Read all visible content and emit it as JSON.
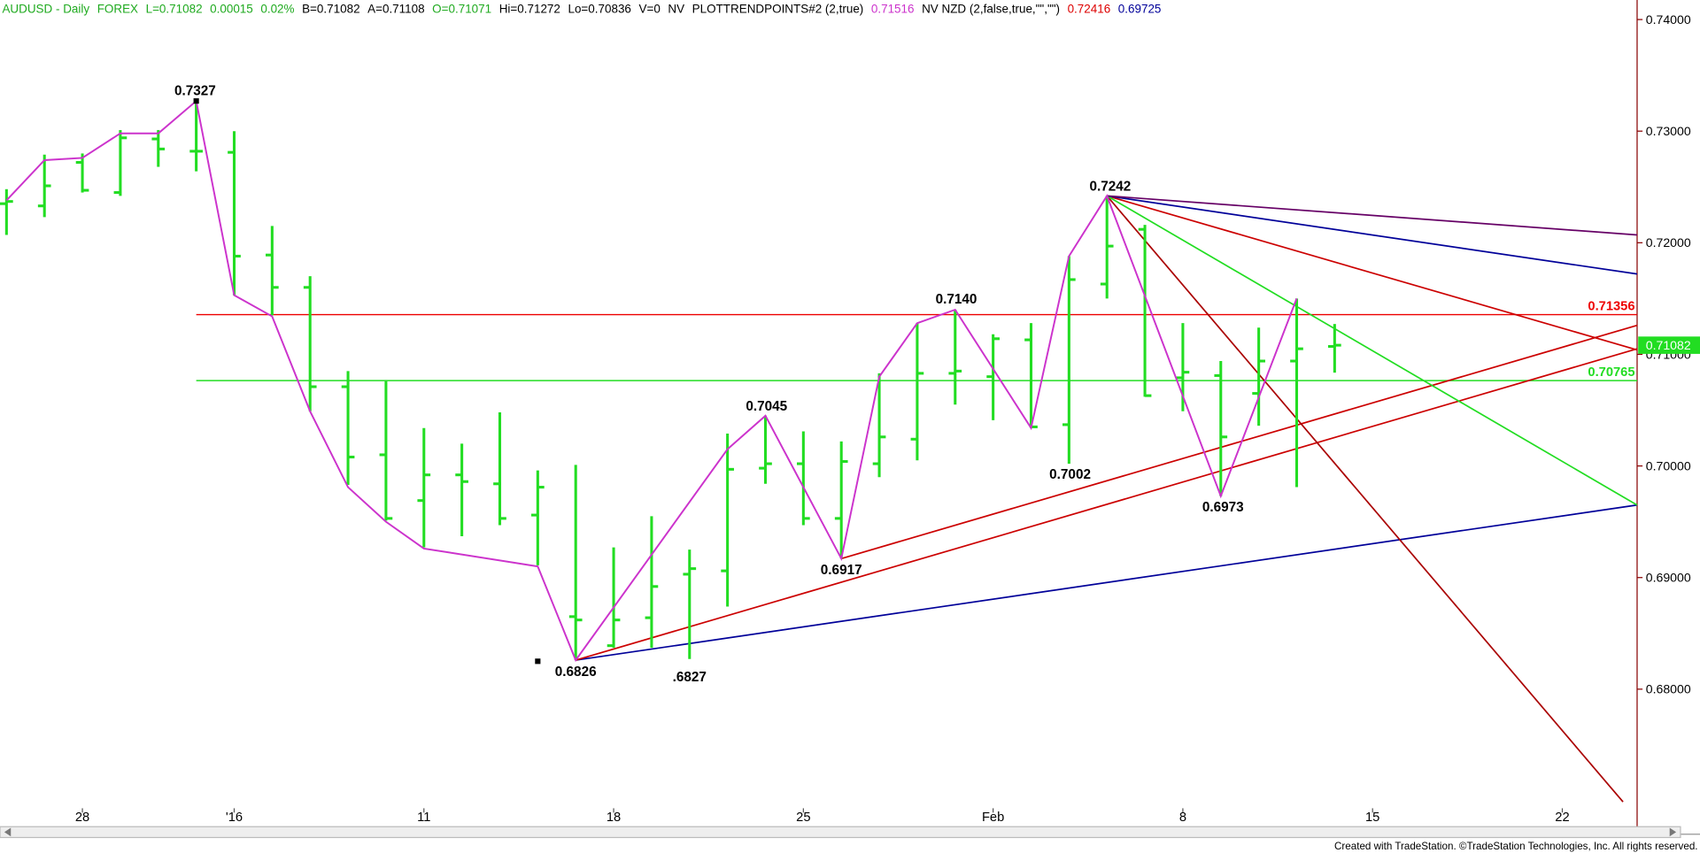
{
  "chart_data": {
    "type": "ohlc",
    "header": [
      {
        "text": "AUDUSD - Daily",
        "color": "#1faa1f"
      },
      {
        "text": "FOREX",
        "color": "#1faa1f"
      },
      {
        "text": "L=0.71082",
        "color": "#1faa1f"
      },
      {
        "text": "0.00015",
        "color": "#1faa1f"
      },
      {
        "text": "0.02%",
        "color": "#1faa1f"
      },
      {
        "text": "B=0.71082",
        "color": "#000000"
      },
      {
        "text": "A=0.71108",
        "color": "#000000"
      },
      {
        "text": "O=0.71071",
        "color": "#1faa1f"
      },
      {
        "text": "Hi=0.71272",
        "color": "#000000"
      },
      {
        "text": "Lo=0.70836",
        "color": "#000000"
      },
      {
        "text": "V=0",
        "color": "#000000"
      },
      {
        "text": "NV",
        "color": "#000000"
      },
      {
        "text": "PLOTTRENDPOINTS#2 (2,true)",
        "color": "#000000"
      },
      {
        "text": "0.71516",
        "color": "#cc33cc"
      },
      {
        "text": "NV NZD (2,false,true,\"\",\"\")",
        "color": "#000000"
      },
      {
        "text": "0.72416",
        "color": "#dd0000"
      },
      {
        "text": "0.69725",
        "color": "#000099"
      }
    ],
    "footer": "Created with TradeStation. ©TradeStation Technologies, Inc. All rights reserved.",
    "categories": [
      null,
      null,
      "28",
      null,
      null,
      null,
      "'16",
      null,
      null,
      null,
      null,
      "11",
      null,
      null,
      null,
      null,
      "18",
      null,
      null,
      null,
      null,
      "25",
      null,
      null,
      null,
      null,
      "Feb",
      null,
      null,
      null,
      null,
      "8",
      null,
      null,
      null,
      null,
      "15",
      null,
      null,
      null,
      null,
      "22",
      null,
      null
    ],
    "bar_color": "#22dd22",
    "open": [
      0.7235,
      0.7233,
      0.7272,
      0.7245,
      0.7293,
      0.7282,
      0.7281,
      0.7189,
      0.716,
      0.7071,
      0.701,
      0.6969,
      0.6992,
      0.6984,
      0.6956,
      0.6865,
      0.6839,
      0.6864,
      0.6903,
      0.6906,
      0.6998,
      0.7002,
      0.6953,
      0.7002,
      0.7024,
      0.7083,
      0.708,
      0.7113,
      0.7037,
      0.7163,
      0.7212,
      0.7079,
      0.7081,
      0.7065,
      0.7094,
      0.71071,
      null,
      null,
      null,
      null,
      null,
      null,
      null,
      null
    ],
    "high": [
      0.7248,
      0.7279,
      0.728,
      0.7301,
      0.7301,
      0.7327,
      0.73,
      0.7215,
      0.717,
      0.7085,
      0.7076,
      0.7034,
      0.702,
      0.7048,
      0.6996,
      0.7001,
      0.6927,
      0.6955,
      0.6925,
      0.7029,
      0.7045,
      0.7031,
      0.7022,
      0.7083,
      0.7128,
      0.714,
      0.7118,
      0.7128,
      0.7188,
      0.7242,
      0.7216,
      0.7128,
      0.7094,
      0.7124,
      0.715,
      0.71272,
      null,
      null,
      null,
      null,
      null,
      null,
      null,
      null
    ],
    "low": [
      0.7207,
      0.7223,
      0.7245,
      0.7242,
      0.7268,
      0.7264,
      0.7153,
      0.7135,
      0.7049,
      0.6983,
      0.6951,
      0.6927,
      0.6937,
      0.6947,
      0.6911,
      0.6826,
      0.6837,
      0.6837,
      0.6827,
      0.6874,
      0.6984,
      0.6947,
      0.6917,
      0.699,
      0.7005,
      0.7055,
      0.7041,
      0.7034,
      0.7002,
      0.715,
      0.7062,
      0.7049,
      0.6973,
      0.7036,
      0.6981,
      0.70836,
      null,
      null,
      null,
      null,
      null,
      null,
      null,
      null
    ],
    "close": [
      0.7237,
      0.7251,
      0.7247,
      0.7294,
      0.7284,
      0.7282,
      0.7188,
      0.716,
      0.7071,
      0.7008,
      0.6953,
      0.6992,
      0.6986,
      0.6953,
      0.6981,
      0.6862,
      0.6862,
      0.6892,
      0.6908,
      0.6997,
      0.7002,
      0.6953,
      0.7004,
      0.7026,
      0.7083,
      0.7085,
      0.7114,
      0.7035,
      0.7167,
      0.7197,
      0.7063,
      0.7084,
      0.7026,
      0.7094,
      0.7105,
      0.71082,
      null,
      null,
      null,
      null,
      null,
      null,
      null,
      null
    ],
    "ylim": [
      0.667,
      0.74175
    ],
    "yticks": [
      {
        "value": 0.68,
        "label": "0.68000"
      },
      {
        "value": 0.69,
        "label": "0.69000"
      },
      {
        "value": 0.7,
        "label": "0.70000"
      },
      {
        "value": 0.71,
        "label": "0.71000"
      },
      {
        "value": 0.72,
        "label": "0.72000"
      },
      {
        "value": 0.73,
        "label": "0.73000"
      },
      {
        "value": 0.74,
        "label": "0.74000"
      }
    ],
    "last_price": {
      "value": 0.71082,
      "label": "0.71082",
      "color": "#22dd22"
    },
    "levels": [
      {
        "value": 0.71356,
        "label": "0.71356",
        "color": "#ee0000"
      },
      {
        "value": 0.70765,
        "label": "0.70765",
        "color": "#22dd22"
      }
    ],
    "zigzag": {
      "color": "#cc33cc",
      "x": [
        0,
        1,
        2,
        3,
        4,
        5,
        6,
        7,
        8,
        9,
        10,
        11,
        14,
        15,
        19,
        20,
        22,
        23,
        24,
        25,
        27,
        28,
        29,
        32,
        34
      ],
      "y": [
        0.7238,
        0.7274,
        0.7276,
        0.7298,
        0.7298,
        0.7327,
        0.7153,
        0.7134,
        0.7049,
        0.6981,
        0.695,
        0.6926,
        0.691,
        0.6826,
        0.7015,
        0.7045,
        0.6917,
        0.708,
        0.7128,
        0.714,
        0.7034,
        0.7188,
        0.7242,
        0.6973,
        0.715
      ]
    },
    "trend_lines": [
      {
        "color": "#000099",
        "x": [
          15,
          42.97
        ],
        "y": [
          0.6826,
          0.6965
        ]
      },
      {
        "color": "#cc0000",
        "x": [
          15,
          42.97
        ],
        "y": [
          0.6826,
          0.7105
        ]
      },
      {
        "color": "#cc0000",
        "x": [
          22,
          42.97
        ],
        "y": [
          0.6917,
          0.7126
        ]
      },
      {
        "color": "#aa0000",
        "x": [
          29,
          42.6
        ],
        "y": [
          0.7242,
          0.6699
        ]
      },
      {
        "color": "#cc0000",
        "x": [
          29,
          42.97
        ],
        "y": [
          0.7242,
          0.7104
        ]
      },
      {
        "color": "#22dd22",
        "x": [
          29,
          42.97
        ],
        "y": [
          0.7242,
          0.6965
        ]
      },
      {
        "color": "#000099",
        "x": [
          29,
          42.97
        ],
        "y": [
          0.7242,
          0.7172
        ]
      },
      {
        "color": "#660066",
        "x": [
          29,
          42.97
        ],
        "y": [
          0.7242,
          0.7207
        ]
      }
    ],
    "pivot_markers": {
      "x": [
        5,
        14
      ],
      "y": [
        0.7327,
        0.6825
      ]
    },
    "annotations": [
      "0.7327",
      "0.6826",
      ".6827",
      "0.7045",
      "0.6917",
      "0.7140",
      "0.7002",
      "0.7242",
      "0.6973"
    ]
  }
}
